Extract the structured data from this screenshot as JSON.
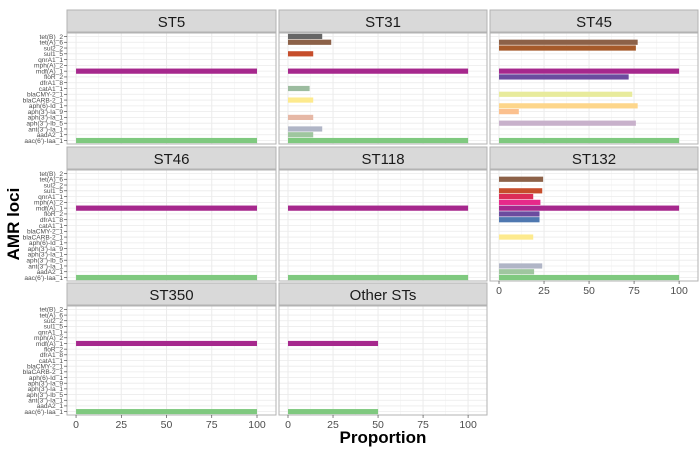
{
  "chart_data": {
    "type": "bar",
    "orientation": "horizontal",
    "xlabel": "Proportion",
    "ylabel": "AMR loci",
    "xlim": [
      -5,
      110.5
    ],
    "xticks": [
      0,
      25,
      50,
      75,
      100
    ],
    "xtick_labels": [
      "0",
      "25",
      "50",
      "75",
      "100"
    ],
    "grid": true,
    "categories": [
      "tet(B)_2",
      "tet(A)_6",
      "sul2_2",
      "sul1_5",
      "qnrA1_1",
      "mph(A)_2",
      "mdf(A)_1",
      "floR_2",
      "dfrA1_8",
      "catA1_1",
      "blaCMY-2_1",
      "blaCARB-2_1",
      "aph(6)-Id_1",
      "aph(3')-Ia_9",
      "aph(3')-Ia_1",
      "aph(3'')-Ib_5",
      "ant(3'')-Ia_1",
      "aadA2_1",
      "aac(6')-Iaa_1"
    ],
    "colors": {
      "tet(B)_2": "#666666",
      "tet(A)_6": "#8c6148",
      "sul2_2": "#a65a2a",
      "sul1_5": "#c64d2b",
      "qnrA1_1": "#dc2d57",
      "mph(A)_2": "#e7298a",
      "mdf(A)_1": "#a6288d",
      "floR_2": "#6b4c9f",
      "dfrA1_8": "#4f78b0",
      "catA1_1": "#9cbc9f",
      "blaCMY-2_1": "#e8eb9c",
      "blaCARB-2_1": "#fdea8e",
      "aph(6)-Id_1": "#fdd68b",
      "aph(3')-Ia_9": "#fbc08e",
      "aph(3')-Ia_1": "#e6b8a6",
      "aph(3'')-Ib_5": "#c8b1cb",
      "ant(3'')-Ia_1": "#b0b5c6",
      "aadA2_1": "#9fc69f",
      "aac(6')-Iaa_1": "#7fc97f"
    },
    "facets": [
      {
        "name": "ST5",
        "values": {
          "mdf(A)_1": 100,
          "aac(6')-Iaa_1": 100
        }
      },
      {
        "name": "ST31",
        "values": {
          "tet(B)_2": 19,
          "tet(A)_6": 24,
          "sul1_5": 14,
          "mdf(A)_1": 100,
          "catA1_1": 12,
          "blaCARB-2_1": 14,
          "aph(3')-Ia_1": 14,
          "ant(3'')-Ia_1": 19,
          "aadA2_1": 14,
          "aac(6')-Iaa_1": 100
        }
      },
      {
        "name": "ST45",
        "values": {
          "tet(A)_6": 77,
          "sul2_2": 76,
          "mdf(A)_1": 100,
          "floR_2": 72,
          "blaCMY-2_1": 74,
          "aph(6)-Id_1": 77,
          "aph(3')-Ia_9": 11,
          "aph(3'')-Ib_5": 76,
          "aac(6')-Iaa_1": 100
        }
      },
      {
        "name": "ST46",
        "values": {
          "mdf(A)_1": 100,
          "aac(6')-Iaa_1": 100
        }
      },
      {
        "name": "ST118",
        "values": {
          "mdf(A)_1": 100,
          "aac(6')-Iaa_1": 100
        }
      },
      {
        "name": "ST132",
        "values": {
          "tet(A)_6": 24.5,
          "sul1_5": 24,
          "qnrA1_1": 19,
          "mph(A)_2": 23,
          "mdf(A)_1": 100,
          "floR_2": 22.5,
          "dfrA1_8": 22.5,
          "blaCARB-2_1": 19,
          "ant(3'')-Ia_1": 24,
          "aadA2_1": 19.5,
          "aac(6')-Iaa_1": 100
        }
      },
      {
        "name": "ST350",
        "values": {
          "mdf(A)_1": 100,
          "aac(6')-Iaa_1": 100
        }
      },
      {
        "name": "Other STs",
        "values": {
          "mdf(A)_1": 50,
          "aac(6')-Iaa_1": 50
        }
      }
    ]
  }
}
